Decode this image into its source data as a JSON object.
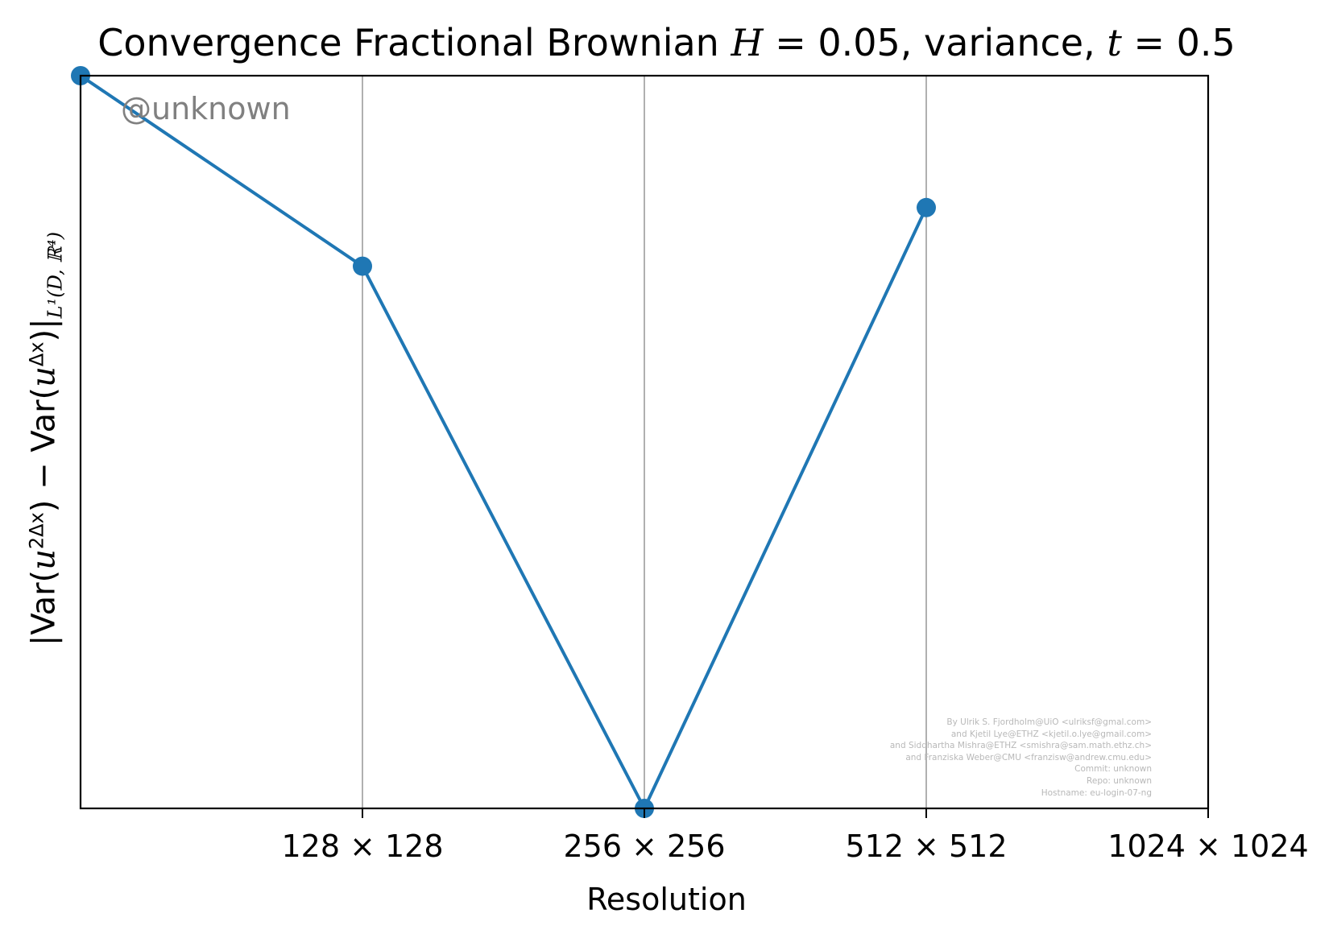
{
  "chart_data": {
    "type": "line",
    "title": {
      "prefix": "Convergence Fractional Brownian ",
      "H_symbol": "H",
      "H_value": " = 0.05, variance, ",
      "t_symbol": "t",
      "t_value": " = 0.5"
    },
    "xlabel": "Resolution",
    "ylabel": {
      "part1": "|Var(",
      "u1": "u",
      "sup1": "2Δx",
      "part2": ") − Var(",
      "u2": "u",
      "sup2": "Δx",
      "part3": ")|",
      "sub": "L¹(D, ℝ⁴)"
    },
    "x_ticks": [
      "128 × 128",
      "256 × 256",
      "512 × 512",
      "1024 × 1024"
    ],
    "x_values": [
      64,
      128,
      256,
      512
    ],
    "y_values": [
      1.0,
      0.74,
      0.0,
      0.82
    ],
    "xscale": "log2",
    "xlim": [
      64,
      1024
    ],
    "ylim": [
      0.0,
      1.0
    ],
    "y_ticks": "none",
    "grid": "vertical",
    "series": [
      {
        "values": [
          1.0,
          0.74,
          0.0,
          0.82
        ]
      }
    ],
    "series_color": "#1f77b4"
  },
  "watermark": "@unknown",
  "credits": [
    "By Ulrik S. Fjordholm@UiO <ulriksf@gmal.com>",
    "and Kjetil Lye@ETHZ <kjetil.o.lye@gmail.com>",
    "and Siddhartha Mishra@ETHZ <smishra@sam.math.ethz.ch>",
    "and Franziska Weber@CMU <franzisw@andrew.cmu.edu>",
    "Commit: unknown",
    "Repo: unknown",
    "Hostname: eu-login-07-ng"
  ]
}
